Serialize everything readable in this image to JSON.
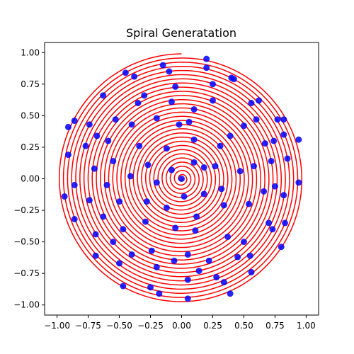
{
  "chart_data": {
    "type": "line",
    "title": "Spiral Generatation",
    "xlabel": "",
    "ylabel": "",
    "xlim": [
      -1.1,
      1.1
    ],
    "ylim": [
      -1.08,
      1.08
    ],
    "xticks": [
      -1.0,
      -0.75,
      -0.5,
      -0.25,
      0.0,
      0.25,
      0.5,
      0.75,
      1.0
    ],
    "yticks": [
      -1.0,
      -0.75,
      -0.5,
      -0.25,
      0.0,
      0.25,
      0.5,
      0.75,
      1.0
    ],
    "xtick_labels": [
      "−1.00",
      "−0.75",
      "−0.50",
      "−0.25",
      "0.00",
      "0.25",
      "0.50",
      "0.75",
      "1.00"
    ],
    "ytick_labels": [
      "−1.00",
      "−0.75",
      "−0.50",
      "−0.25",
      "0.00",
      "0.25",
      "0.50",
      "0.75",
      "1.00"
    ],
    "grid": false,
    "series": [
      {
        "kind": "spiral-curve",
        "color": "#ff0000",
        "turns": 30,
        "r_max": 0.99
      },
      {
        "kind": "points",
        "color": "#0000ff",
        "points": [
          [
            0.0,
            0.0
          ],
          [
            0.1,
            0.13
          ],
          [
            0.18,
            0.09
          ],
          [
            -0.02,
            0.43
          ],
          [
            -0.08,
            0.07
          ],
          [
            0.02,
            -0.14
          ],
          [
            -0.2,
            -0.03
          ],
          [
            -0.12,
            0.24
          ],
          [
            -0.27,
            0.11
          ],
          [
            0.1,
            0.31
          ],
          [
            0.27,
            0.1
          ],
          [
            0.18,
            -0.12
          ],
          [
            0.06,
            0.45
          ],
          [
            0.31,
            0.26
          ],
          [
            0.32,
            -0.08
          ],
          [
            0.12,
            -0.3
          ],
          [
            -0.12,
            -0.23
          ],
          [
            -0.28,
            -0.18
          ],
          [
            -0.41,
            0.02
          ],
          [
            -0.34,
            0.26
          ],
          [
            -0.2,
            0.48
          ],
          [
            0.1,
            0.55
          ],
          [
            0.39,
            0.34
          ],
          [
            0.47,
            0.06
          ],
          [
            0.34,
            -0.21
          ],
          [
            0.11,
            -0.41
          ],
          [
            -0.05,
            -0.39
          ],
          [
            -0.29,
            -0.34
          ],
          [
            -0.5,
            -0.18
          ],
          [
            -0.55,
            0.14
          ],
          [
            -0.4,
            0.43
          ],
          [
            -0.08,
            0.61
          ],
          [
            0.25,
            0.62
          ],
          [
            0.5,
            0.42
          ],
          [
            0.58,
            0.1
          ],
          [
            0.54,
            -0.2
          ],
          [
            0.37,
            -0.46
          ],
          [
            0.05,
            -0.6
          ],
          [
            -0.24,
            -0.57
          ],
          [
            -0.47,
            -0.4
          ],
          [
            -0.6,
            -0.05
          ],
          [
            -0.59,
            0.3
          ],
          [
            -0.35,
            0.6
          ],
          [
            -0.05,
            0.73
          ],
          [
            0.25,
            0.75
          ],
          [
            0.56,
            0.6
          ],
          [
            0.67,
            0.28
          ],
          [
            0.66,
            -0.1
          ],
          [
            0.5,
            -0.5
          ],
          [
            0.22,
            -0.65
          ],
          [
            -0.06,
            -0.65
          ],
          [
            -0.4,
            -0.6
          ],
          [
            -0.63,
            -0.3
          ],
          [
            -0.7,
            0.08
          ],
          [
            -0.68,
            0.34
          ],
          [
            -0.53,
            0.47
          ],
          [
            -0.3,
            0.66
          ],
          [
            -0.1,
            0.85
          ],
          [
            0.2,
            0.88
          ],
          [
            0.4,
            0.8
          ],
          [
            0.62,
            0.62
          ],
          [
            0.74,
            0.3
          ],
          [
            0.75,
            -0.06
          ],
          [
            0.7,
            -0.35
          ],
          [
            0.45,
            -0.62
          ],
          [
            0.14,
            -0.73
          ],
          [
            -0.2,
            -0.7
          ],
          [
            -0.55,
            -0.5
          ],
          [
            -0.74,
            -0.17
          ],
          [
            -0.77,
            0.26
          ],
          [
            -0.63,
            0.66
          ],
          [
            -0.38,
            0.81
          ],
          [
            -0.15,
            0.9
          ],
          [
            0.2,
            0.95
          ],
          [
            0.42,
            0.79
          ],
          [
            0.77,
            0.47
          ],
          [
            0.85,
            0.16
          ],
          [
            0.82,
            -0.13
          ],
          [
            0.73,
            -0.4
          ],
          [
            0.55,
            -0.61
          ],
          [
            0.34,
            -0.82
          ],
          [
            0.05,
            -0.8
          ],
          [
            -0.25,
            -0.86
          ],
          [
            -0.5,
            -0.67
          ],
          [
            -0.69,
            -0.44
          ],
          [
            -0.86,
            -0.05
          ],
          [
            -0.74,
            0.43
          ],
          [
            -0.45,
            0.84
          ],
          [
            0.28,
            -0.78
          ],
          [
            0.82,
            0.47
          ],
          [
            0.94,
            -0.03
          ],
          [
            0.94,
            0.31
          ],
          [
            0.83,
            -0.35
          ],
          [
            0.8,
            -0.54
          ],
          [
            0.56,
            -0.74
          ],
          [
            0.39,
            -0.91
          ],
          [
            0.05,
            -0.95
          ],
          [
            -0.18,
            -0.91
          ],
          [
            -0.47,
            -0.85
          ],
          [
            -0.69,
            -0.61
          ],
          [
            -0.86,
            -0.32
          ],
          [
            -0.94,
            -0.14
          ],
          [
            -0.91,
            0.19
          ],
          [
            -0.86,
            0.46
          ],
          [
            -0.91,
            0.41
          ],
          [
            0.82,
            0.35
          ],
          [
            0.6,
            0.47
          ],
          [
            0.72,
            0.14
          ]
        ]
      }
    ]
  }
}
